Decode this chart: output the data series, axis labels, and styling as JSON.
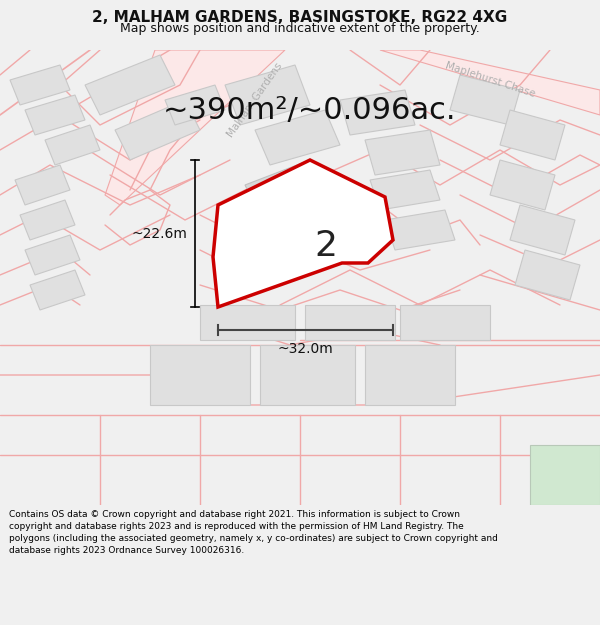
{
  "title_line1": "2, MALHAM GARDENS, BASINGSTOKE, RG22 4XG",
  "title_line2": "Map shows position and indicative extent of the property.",
  "area_text": "~390m²/~0.096ac.",
  "plot_number": "2",
  "dim_vertical": "~22.6m",
  "dim_horizontal": "~32.0m",
  "footer_text": "Contains OS data © Crown copyright and database right 2021. This information is subject to Crown copyright and database rights 2023 and is reproduced with the permission of HM Land Registry. The polygons (including the associated geometry, namely x, y co-ordinates) are subject to Crown copyright and database rights 2023 Ordnance Survey 100026316.",
  "bg_color": "#f0f0f0",
  "map_bg": "#ffffff",
  "plot_fill": "#ffffff",
  "plot_edge": "#cc0000",
  "street_color": "#f0a8a8",
  "building_fill": "#e0e0e0",
  "building_edge": "#c8c8c8",
  "road_label_color": "#b0b0b0",
  "title_fontsize": 11,
  "subtitle_fontsize": 9,
  "area_fontsize": 22,
  "number_fontsize": 26,
  "dim_fontsize": 10,
  "footer_fontsize": 6.5
}
